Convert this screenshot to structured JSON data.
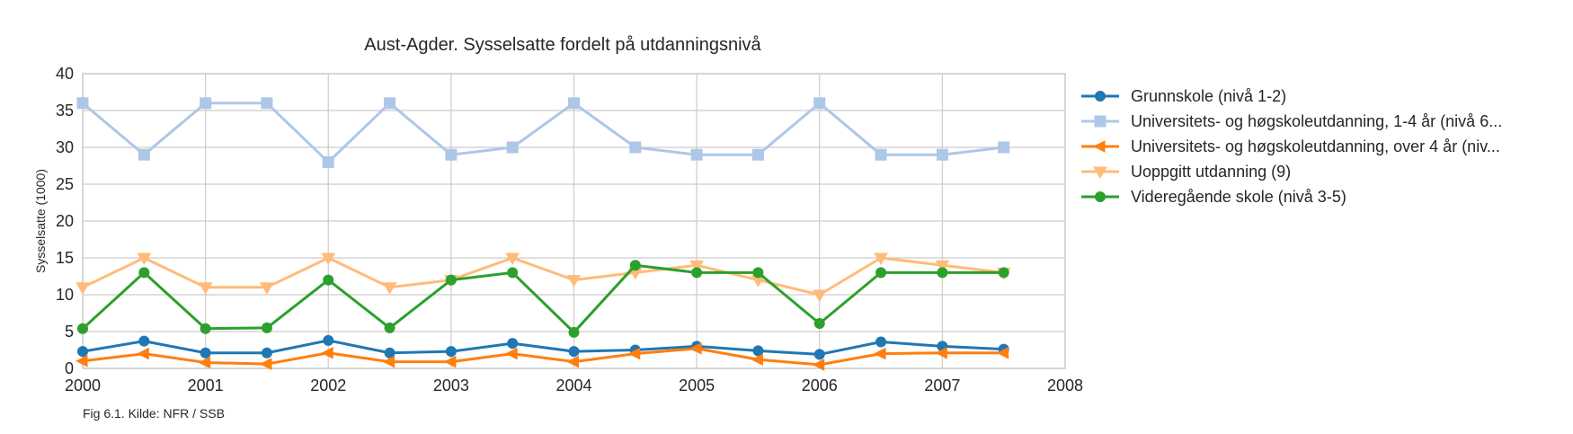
{
  "chart_data": {
    "type": "line",
    "title": "Aust-Agder. Sysselsatte fordelt på utdanningsnivå",
    "xlabel": "",
    "ylabel": "Sysselsatte (1000)",
    "caption": "Fig 6.1. Kilde: NFR / SSB",
    "xlim": [
      2000,
      2008
    ],
    "ylim": [
      0,
      40
    ],
    "x_ticks": [
      "2000",
      "2001",
      "2002",
      "2003",
      "2004",
      "2005",
      "2006",
      "2007",
      "2008"
    ],
    "y_ticks": [
      "0",
      "5",
      "10",
      "15",
      "20",
      "25",
      "30",
      "35",
      "40"
    ],
    "grid": true,
    "legend_position": "right",
    "x": [
      2000,
      2000.5,
      2001,
      2001.5,
      2002,
      2002.5,
      2003,
      2003.5,
      2004,
      2004.5,
      2005,
      2005.5,
      2006,
      2006.5,
      2007,
      2007.5
    ],
    "series": [
      {
        "name": "Grunnskole (nivå 1-2)",
        "color": "#1f77b4",
        "marker": "circle",
        "values": [
          2.3,
          3.7,
          2.1,
          2.1,
          3.8,
          2.1,
          2.3,
          3.4,
          2.3,
          2.5,
          3.0,
          2.4,
          1.9,
          3.6,
          3.0,
          2.6
        ]
      },
      {
        "name": "Universitets- og høgskoleutdanning, 1-4 år (nivå 6...",
        "color": "#aec7e8",
        "marker": "square",
        "values": [
          36,
          29,
          36,
          36,
          28,
          36,
          29,
          30,
          36,
          30,
          29,
          29,
          36,
          29,
          29,
          30
        ]
      },
      {
        "name": "Universitets- og høgskoleutdanning, over 4 år (niv...",
        "color": "#ff7f0e",
        "marker": "triangle-left",
        "values": [
          1.0,
          2.0,
          0.8,
          0.6,
          2.1,
          0.9,
          0.9,
          2.0,
          0.9,
          2.0,
          2.7,
          1.2,
          0.5,
          2.0,
          2.1,
          2.1
        ]
      },
      {
        "name": "Uoppgitt utdanning (9)",
        "color": "#ffbb78",
        "marker": "triangle-down",
        "values": [
          11,
          15,
          11,
          11,
          15,
          11,
          12,
          15,
          12,
          13,
          14,
          12,
          10,
          15,
          14,
          13
        ]
      },
      {
        "name": "Videregående skole (nivå 3-5)",
        "color": "#2ca02c",
        "marker": "circle",
        "values": [
          5.4,
          13,
          5.4,
          5.5,
          12,
          5.5,
          12,
          13,
          4.9,
          14,
          13,
          13,
          6.1,
          13,
          13,
          13
        ]
      }
    ]
  }
}
